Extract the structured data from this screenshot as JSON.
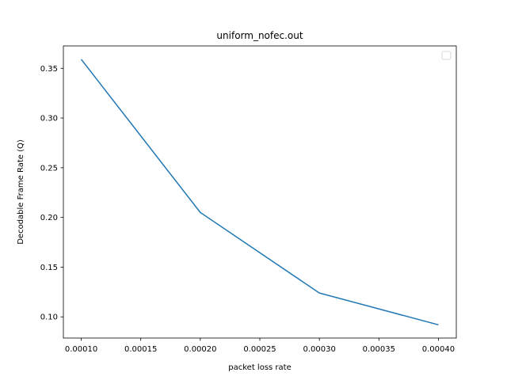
{
  "chart_data": {
    "type": "line",
    "title": "uniform_nofec.out",
    "xlabel": "packet loss rate",
    "ylabel": "Decodable Frame Rate (Q)",
    "xlim": [
      8.5e-05,
      0.000415
    ],
    "ylim": [
      0.0787,
      0.3725
    ],
    "x_ticks": [
      0.0001,
      0.00015,
      0.0002,
      0.00025,
      0.0003,
      0.00035,
      0.0004
    ],
    "x_tick_labels": [
      "0.00010",
      "0.00015",
      "0.00020",
      "0.00025",
      "0.00030",
      "0.00035",
      "0.00040"
    ],
    "y_ticks": [
      0.1,
      0.15,
      0.2,
      0.25,
      0.3,
      0.35
    ],
    "y_tick_labels": [
      "0.10",
      "0.15",
      "0.20",
      "0.25",
      "0.30",
      "0.35"
    ],
    "grid": false,
    "legend": "upper-right (empty)",
    "line_color": "#1f77b4",
    "series": [
      {
        "x": [
          0.0001,
          0.0002,
          0.0003,
          0.0004
        ],
        "y": [
          0.359,
          0.205,
          0.124,
          0.092
        ]
      }
    ]
  }
}
